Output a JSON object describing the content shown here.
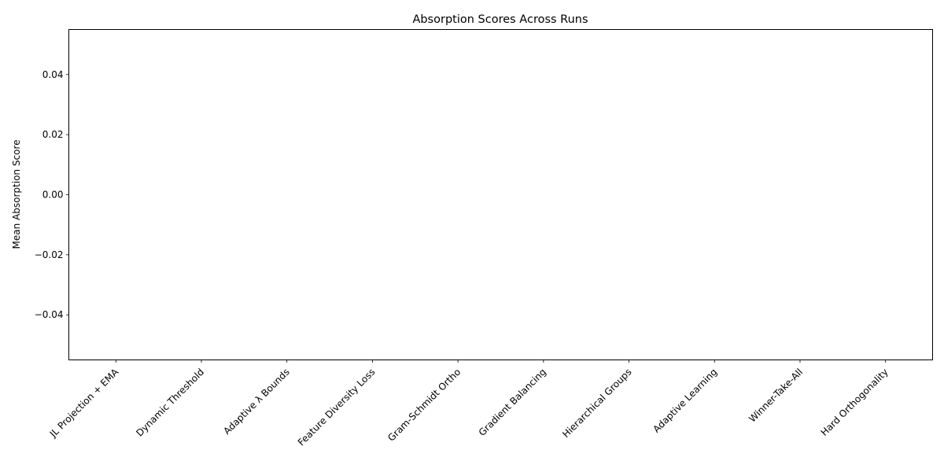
{
  "chart_data": {
    "type": "bar",
    "title": "Absorption Scores Across Runs",
    "xlabel": "",
    "ylabel": "Mean Absorption Score",
    "categories": [
      "JL Projection + EMA",
      "Dynamic Threshold",
      "Adaptive λ Bounds",
      "Feature Diversity Loss",
      "Gram-Schmidt Ortho",
      "Gradient Balancing",
      "Hierarchical Groups",
      "Adaptive Learning",
      "Winner-Take-All",
      "Hard Orthogonality"
    ],
    "values": [
      0,
      0,
      0,
      0,
      0,
      0,
      0,
      0,
      0,
      0
    ],
    "ylim": [
      -0.055,
      0.055
    ],
    "yticks": [
      -0.04,
      -0.02,
      0.0,
      0.02,
      0.04
    ],
    "ytick_labels": [
      "−0.04",
      "−0.02",
      "0.00",
      "0.02",
      "0.04"
    ],
    "grid": false,
    "bar_color": "#1f77b4"
  }
}
